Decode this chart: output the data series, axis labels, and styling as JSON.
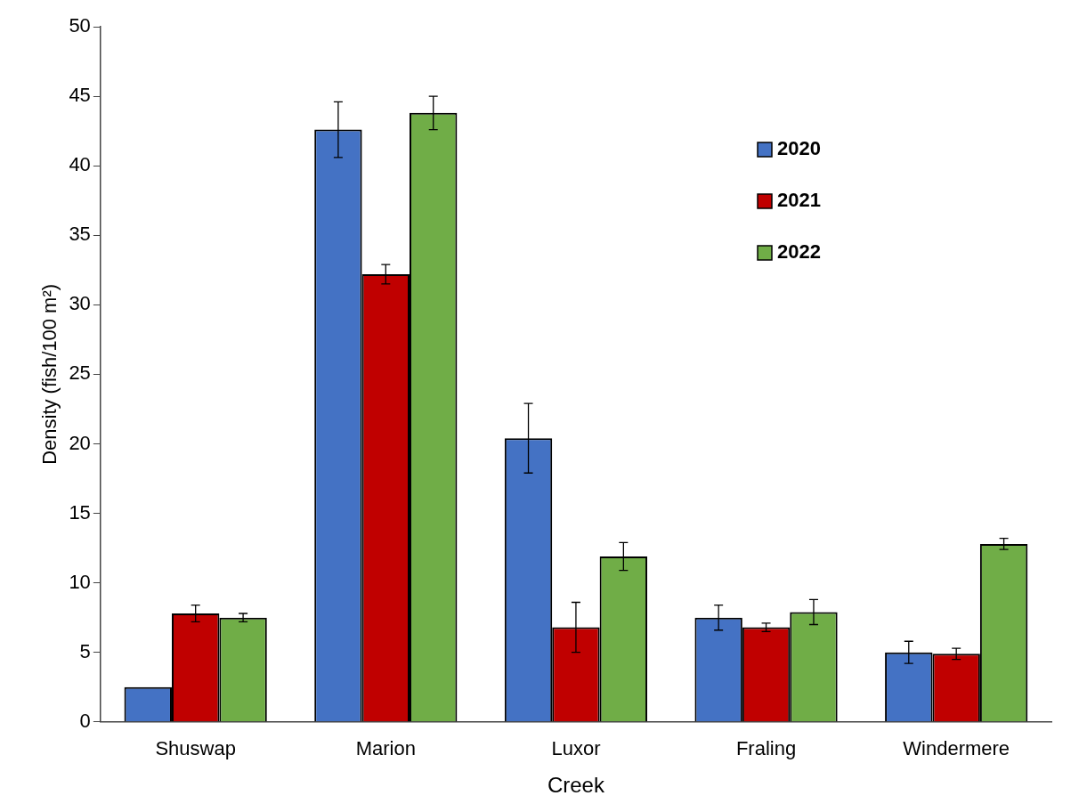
{
  "chart_data": {
    "type": "bar",
    "xlabel": "Creek",
    "ylabel": "Density (fish/100 m²)",
    "categories": [
      "Shuswap",
      "Marion",
      "Luxor",
      "Fraling",
      "Windermere"
    ],
    "series": [
      {
        "name": "2020",
        "color": "#4472c4",
        "values": [
          2.5,
          42.6,
          20.4,
          7.5,
          5.0
        ],
        "errors": [
          null,
          2.0,
          2.5,
          0.9,
          0.8
        ]
      },
      {
        "name": "2021",
        "color": "#c00000",
        "values": [
          7.8,
          32.2,
          6.8,
          6.8,
          4.9
        ],
        "errors": [
          0.6,
          0.7,
          1.8,
          0.3,
          0.4
        ]
      },
      {
        "name": "2022",
        "color": "#70ad47",
        "values": [
          7.5,
          43.8,
          11.9,
          7.9,
          12.8
        ],
        "errors": [
          0.3,
          1.2,
          1.0,
          0.9,
          0.4
        ]
      }
    ],
    "ylim": [
      0,
      50
    ],
    "yticks": [
      0,
      5,
      10,
      15,
      20,
      25,
      30,
      35,
      40,
      45,
      50
    ],
    "legend": "top right"
  }
}
